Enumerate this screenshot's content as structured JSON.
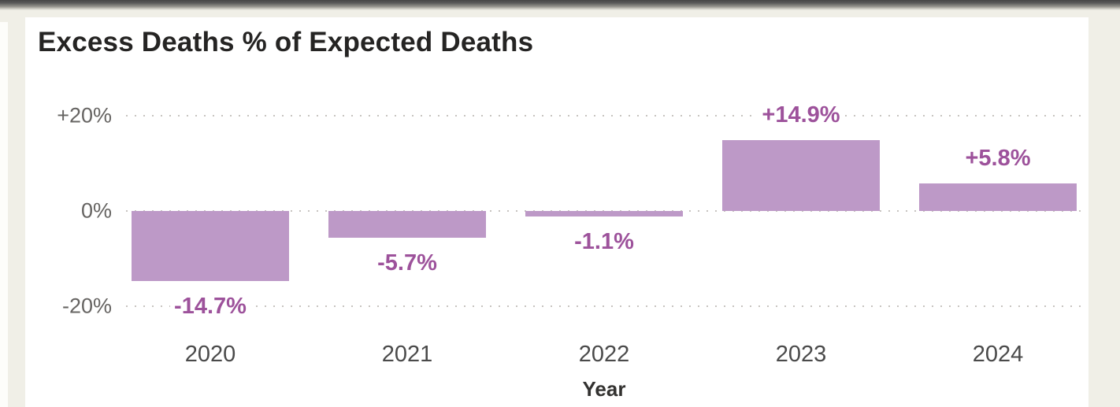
{
  "page": {
    "background_color": "#f0efe7",
    "card_background": "#ffffff",
    "top_edge_color": "#454545"
  },
  "chart_data": {
    "type": "bar",
    "title": "Excess Deaths % of Expected Deaths",
    "xlabel": "Year",
    "ylabel": "",
    "categories": [
      "2020",
      "2021",
      "2022",
      "2023",
      "2024"
    ],
    "values": [
      -14.7,
      -5.7,
      -1.1,
      14.9,
      5.8
    ],
    "data_labels": [
      "-14.7%",
      "-5.7%",
      "-1.1%",
      "+14.9%",
      "+5.8%"
    ],
    "y_ticks": [
      {
        "value": 20,
        "label": "+20%"
      },
      {
        "value": 0,
        "label": "0%"
      },
      {
        "value": -20,
        "label": "-20%"
      }
    ],
    "ylim": [
      -25,
      25
    ],
    "grid": "horizontal-dotted",
    "legend": "none",
    "colors": {
      "bar_fill": "#bd99c7",
      "data_label": "#9d529b",
      "axis_text": "#666462",
      "grid_dots": "#c7c4c0",
      "title_text": "#252423"
    }
  }
}
